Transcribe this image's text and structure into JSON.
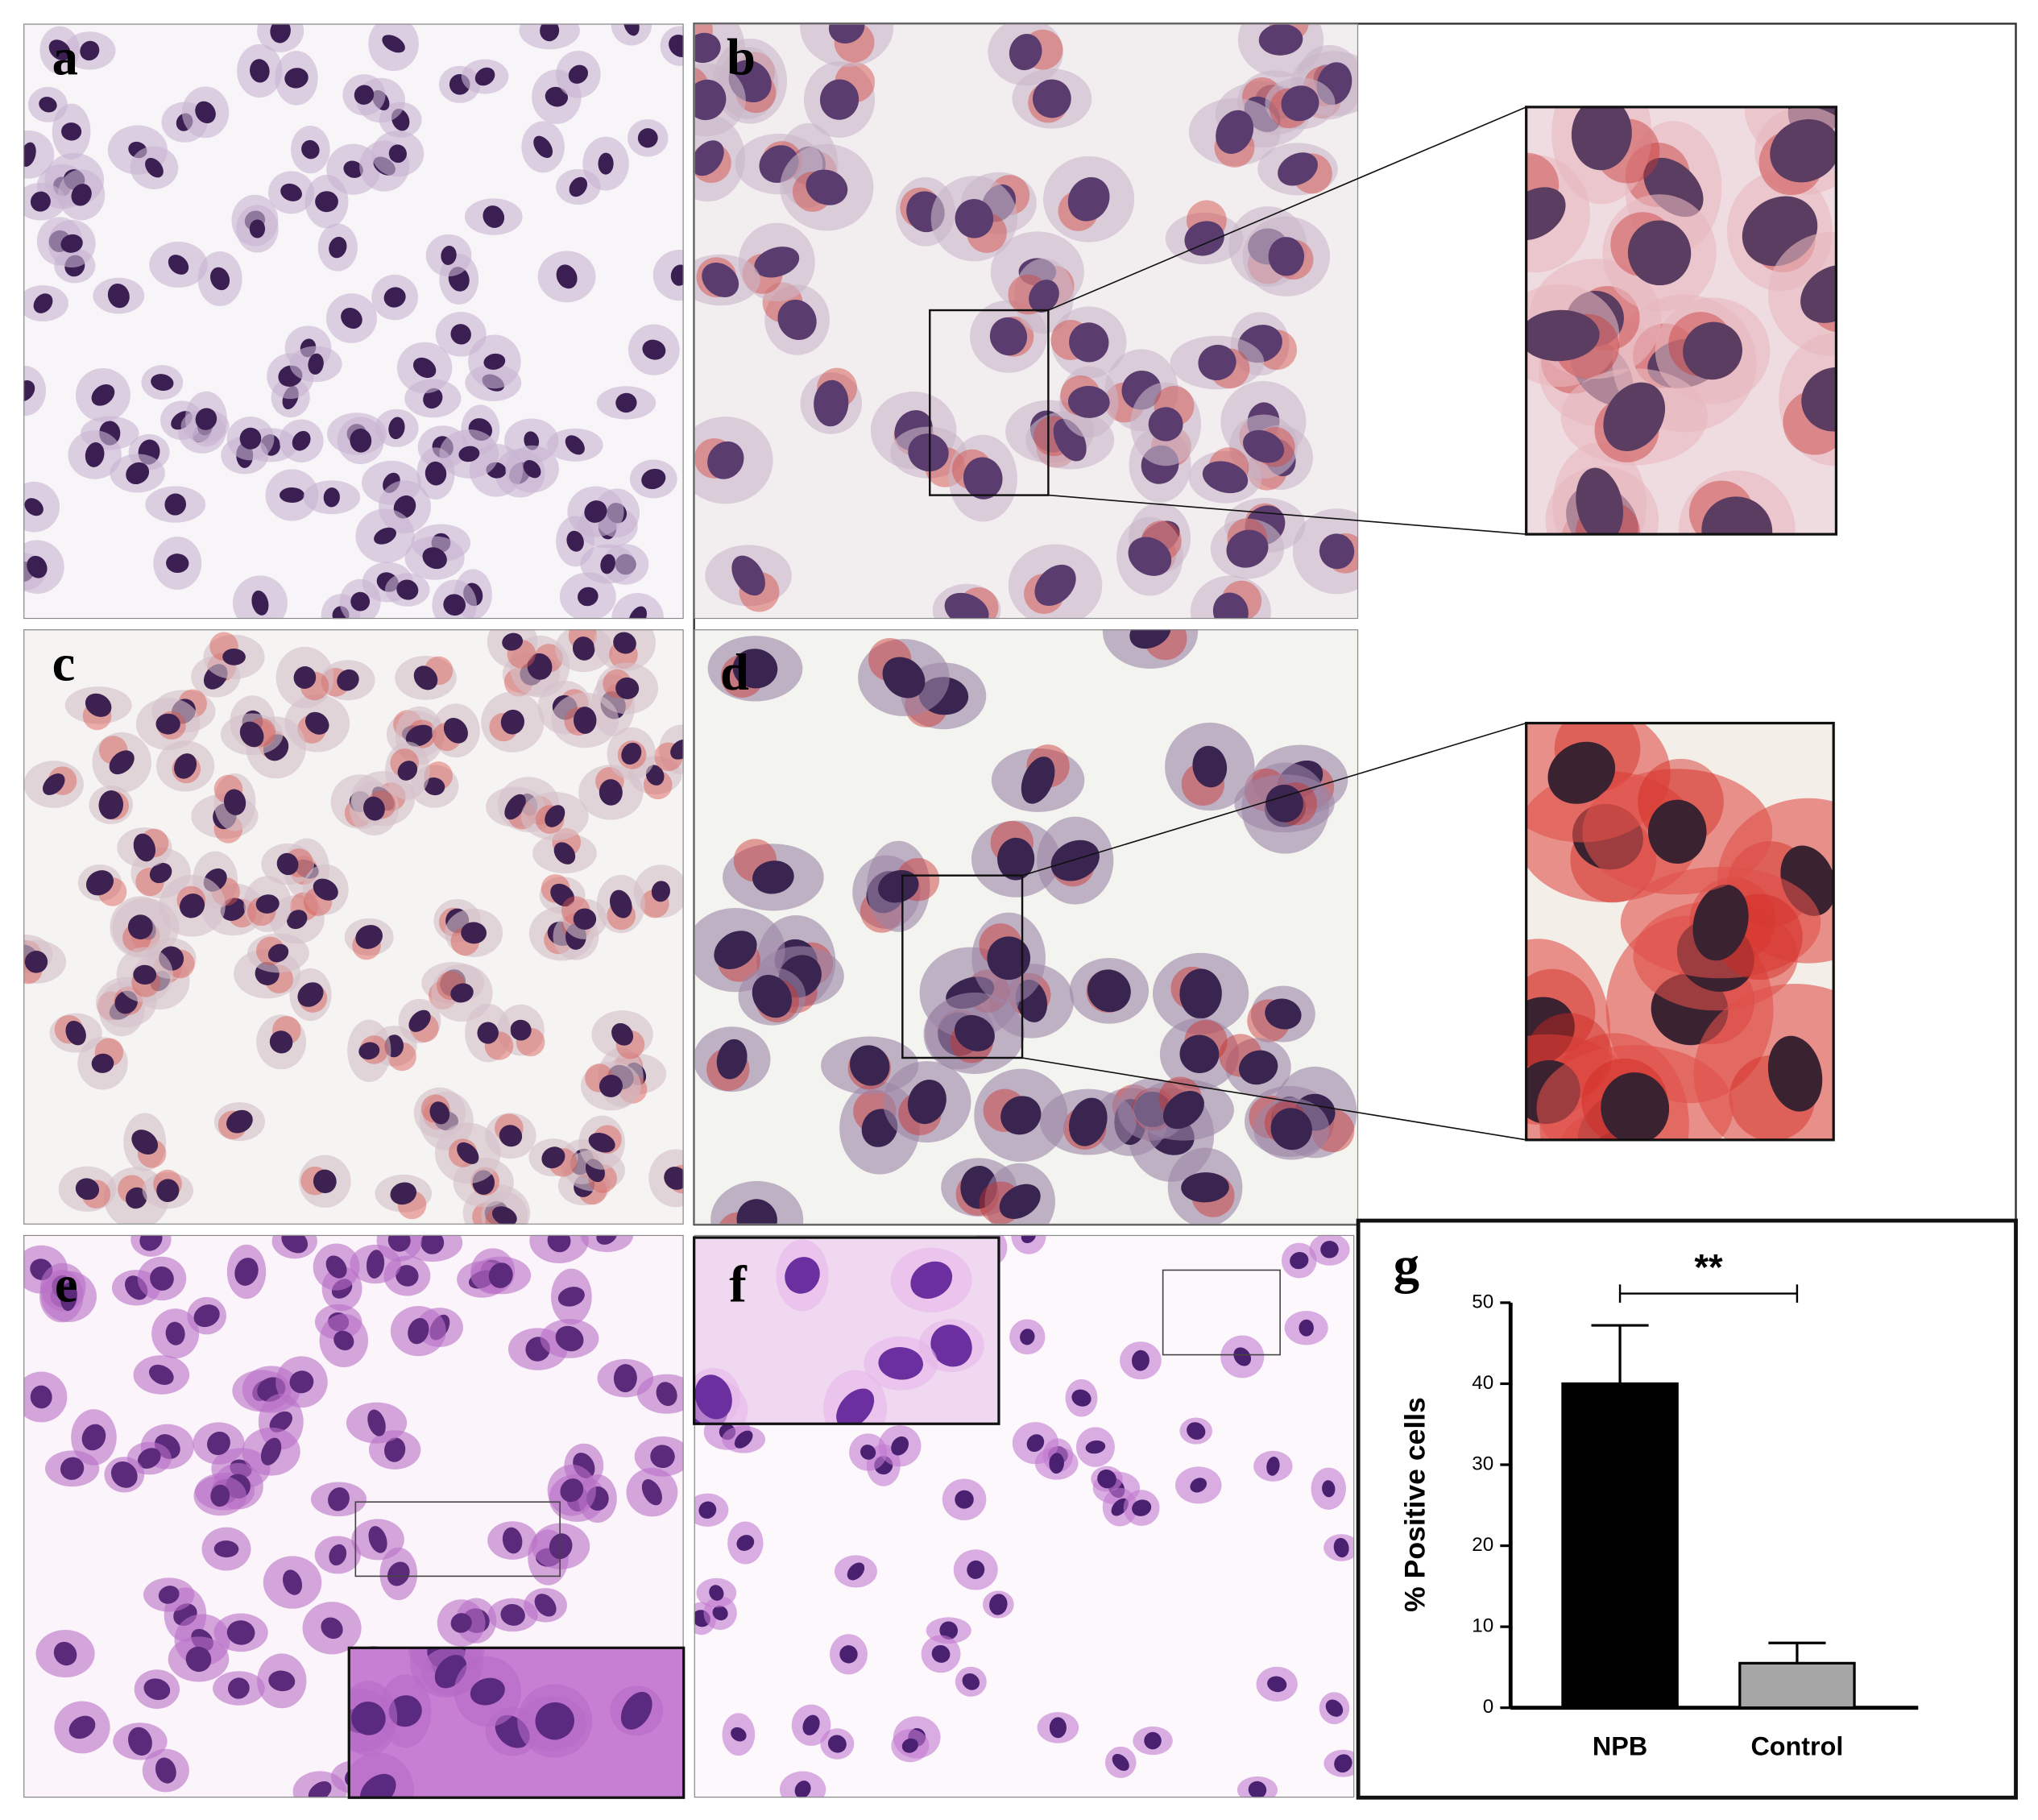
{
  "panels": {
    "labels": [
      "a",
      "b",
      "c",
      "d",
      "e",
      "f"
    ]
  },
  "chart_data": {
    "type": "bar",
    "label": "g",
    "categories": [
      "NPB",
      "Control"
    ],
    "values": [
      40,
      5.5
    ],
    "errors": [
      7.2,
      2.5
    ],
    "colors": [
      "#000000",
      "#a6a6a6"
    ],
    "ylabel": "% Positive cells",
    "ylim": [
      0,
      50
    ],
    "yticks": [
      0,
      10,
      20,
      30,
      40,
      50
    ],
    "annotation": "**"
  }
}
